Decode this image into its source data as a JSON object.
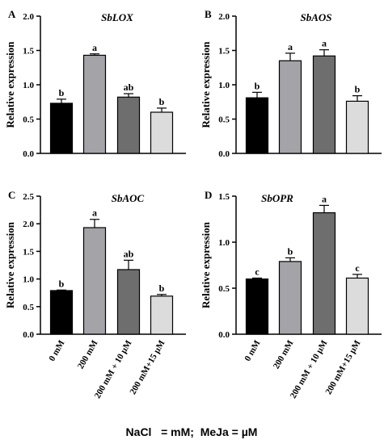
{
  "footnote": "NaCl   = mM;  MeJa = µM",
  "bar_colors": [
    "#000000",
    "#a3a3a8",
    "#6e6e6e",
    "#dcdcdc"
  ],
  "chart_data": [
    {
      "type": "bar",
      "panel": "A",
      "title": "SbLOX",
      "ylabel": "Relative expression",
      "categories": [
        "0 mM",
        "200 mM",
        "200 mM + 10 µM",
        "200 mM+15 µM"
      ],
      "values": [
        0.73,
        1.43,
        0.82,
        0.6
      ],
      "errors": [
        0.06,
        0.02,
        0.05,
        0.06
      ],
      "labels": [
        "b",
        "a",
        "ab",
        "b"
      ],
      "ylim": [
        0,
        2.0
      ],
      "yticks": [
        "0.0",
        "0.5",
        "1.0",
        "1.5",
        "2.0"
      ]
    },
    {
      "type": "bar",
      "panel": "B",
      "title": "SbAOS",
      "ylabel": "Relative expression",
      "categories": [
        "0 mM",
        "200 mM",
        "200 mM + 10 µM",
        "200 mM+15 µM"
      ],
      "values": [
        0.81,
        1.35,
        1.42,
        0.76
      ],
      "errors": [
        0.08,
        0.11,
        0.09,
        0.08
      ],
      "labels": [
        "b",
        "a",
        "a",
        "b"
      ],
      "ylim": [
        0,
        2.0
      ],
      "yticks": [
        "0.0",
        "0.5",
        "1.0",
        "1.5",
        "2.0"
      ]
    },
    {
      "type": "bar",
      "panel": "C",
      "title": "SbAOC",
      "ylabel": "Relative expression",
      "categories": [
        "0 mM",
        "200 mM",
        "200 mM + 10 µM",
        "200 mM+15 µM"
      ],
      "values": [
        0.79,
        1.93,
        1.17,
        0.69
      ],
      "errors": [
        0.01,
        0.15,
        0.17,
        0.03
      ],
      "labels": [
        "b",
        "a",
        "ab",
        "b"
      ],
      "ylim": [
        0,
        2.5
      ],
      "yticks": [
        "0.0",
        "0.5",
        "1.0",
        "1.5",
        "2.0",
        "2.5"
      ]
    },
    {
      "type": "bar",
      "panel": "D",
      "title": "SbOPR",
      "ylabel": "Relative expression",
      "categories": [
        "0 mM",
        "200 mM",
        "200 mM + 10 µM",
        "200 mM+15 µM"
      ],
      "values": [
        0.6,
        0.79,
        1.32,
        0.61
      ],
      "errors": [
        0.01,
        0.04,
        0.08,
        0.04
      ],
      "labels": [
        "c",
        "b",
        "a",
        "c"
      ],
      "ylim": [
        0,
        1.5
      ],
      "yticks": [
        "0.0",
        "0.5",
        "1.0",
        "1.5"
      ]
    }
  ]
}
